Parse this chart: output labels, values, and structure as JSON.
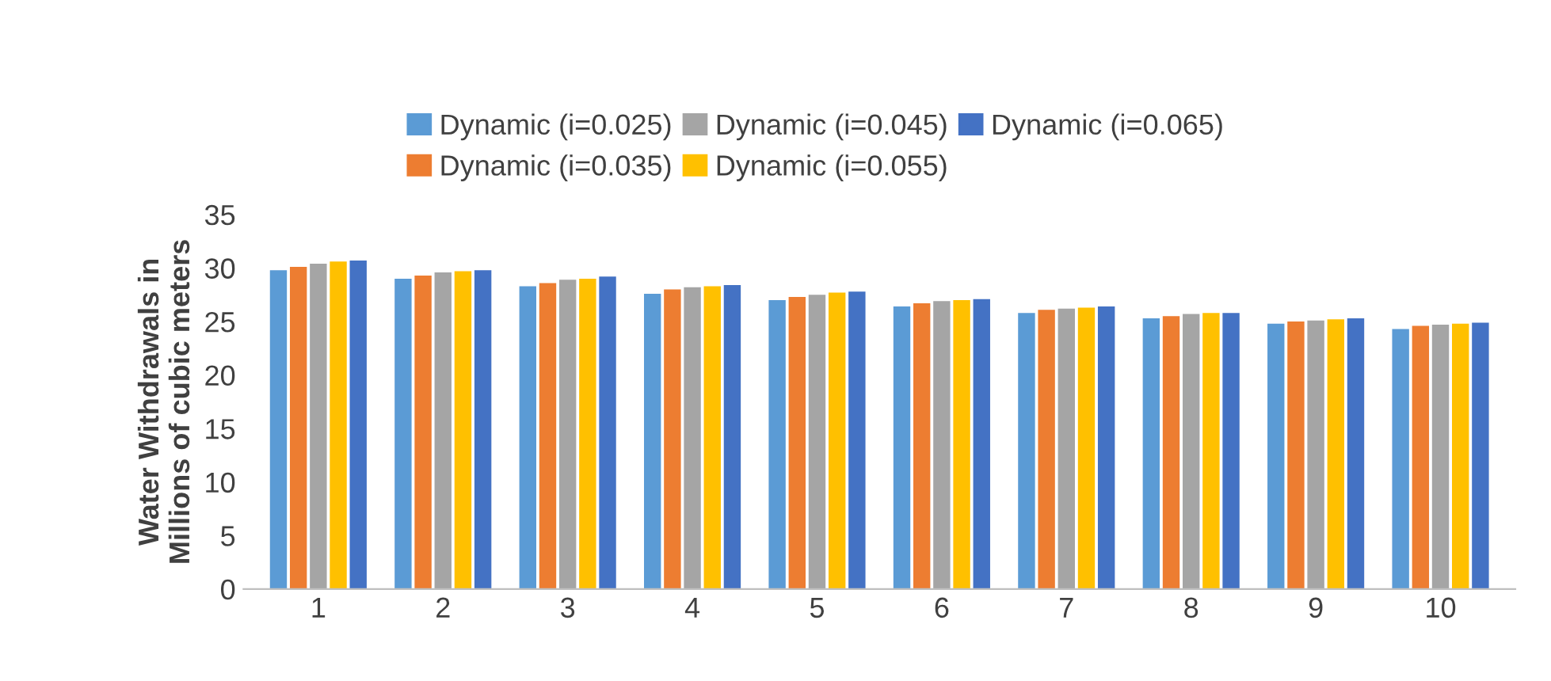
{
  "chart_data": {
    "type": "bar",
    "ylabel": "Water Withdrawals in\nMillions of cubic meters",
    "categories": [
      "1",
      "2",
      "3",
      "4",
      "5",
      "6",
      "7",
      "8",
      "9",
      "10"
    ],
    "series": [
      {
        "name": "Dynamic (i=0.025)",
        "color": "#5b9bd5",
        "values": [
          29.8,
          29.0,
          28.3,
          27.6,
          27.0,
          26.4,
          25.8,
          25.3,
          24.8,
          24.3
        ]
      },
      {
        "name": "Dynamic (i=0.035)",
        "color": "#ed7d31",
        "values": [
          30.1,
          29.3,
          28.6,
          28.0,
          27.3,
          26.7,
          26.1,
          25.5,
          25.0,
          24.6
        ]
      },
      {
        "name": "Dynamic (i=0.045)",
        "color": "#a5a5a5",
        "values": [
          30.4,
          29.6,
          28.9,
          28.2,
          27.5,
          26.9,
          26.2,
          25.7,
          25.1,
          24.7
        ]
      },
      {
        "name": "Dynamic (i=0.055)",
        "color": "#ffc000",
        "values": [
          30.6,
          29.7,
          29.0,
          28.3,
          27.7,
          27.0,
          26.3,
          25.8,
          25.2,
          24.8
        ]
      },
      {
        "name": "Dynamic (i=0.065)",
        "color": "#4472c4",
        "values": [
          30.7,
          29.8,
          29.2,
          28.4,
          27.8,
          27.1,
          26.4,
          25.8,
          25.3,
          24.9
        ]
      }
    ],
    "ylim": [
      0,
      35
    ],
    "yticks": [
      0,
      5,
      10,
      15,
      20,
      25,
      30,
      35
    ],
    "grid": false,
    "legend": "top"
  }
}
